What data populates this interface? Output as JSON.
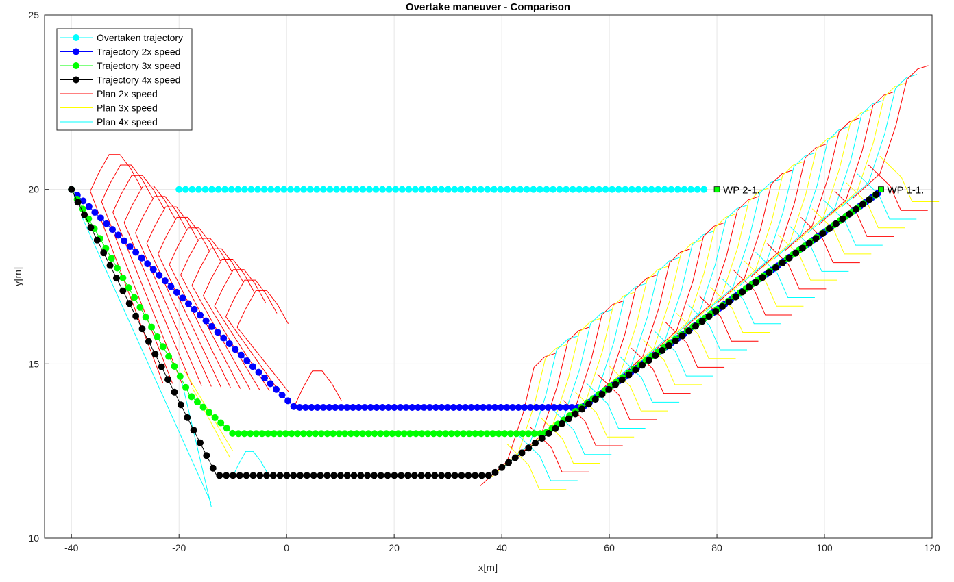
{
  "chart_data": {
    "type": "line",
    "title": "Overtake maneuver - Comparison",
    "xlabel": "x[m]",
    "ylabel": "y[m]",
    "xlim": [
      -45,
      120
    ],
    "ylim": [
      10,
      25
    ],
    "xticks": [
      -40,
      -20,
      0,
      20,
      40,
      60,
      80,
      100,
      120
    ],
    "yticks": [
      10,
      15,
      20,
      25
    ],
    "grid": true,
    "legend_position": "top-left",
    "series": [
      {
        "name": "Overtaken trajectory",
        "color": "#00FFFF",
        "style": "line-dot",
        "path": [
          [
            -20,
            20
          ],
          [
            78,
            20
          ]
        ],
        "dot_step": 1.22
      },
      {
        "name": "Trajectory 2x speed",
        "color": "#0000FF",
        "style": "line-dot",
        "path": [
          [
            -40,
            20
          ],
          [
            1.5,
            13.75
          ],
          [
            55,
            13.75
          ],
          [
            110,
            19.9
          ]
        ],
        "dot_step": 1.1
      },
      {
        "name": "Trajectory 3x speed",
        "color": "#00FF00",
        "style": "line-dot",
        "path": [
          [
            -40,
            20
          ],
          [
            -20,
            14.7
          ],
          [
            -18,
            14.1
          ],
          [
            -10,
            13.0
          ],
          [
            48,
            13.0
          ],
          [
            110,
            19.9
          ]
        ],
        "dot_step": 1.1
      },
      {
        "name": "Trajectory 4x speed",
        "color": "#000000",
        "style": "line-dot",
        "path": [
          [
            -40,
            20
          ],
          [
            -13,
            11.8
          ],
          [
            38,
            11.8
          ],
          [
            110,
            19.9
          ]
        ],
        "dot_step": 1.25
      },
      {
        "name": "Plan 2x speed",
        "color": "#FF0000",
        "style": "line"
      },
      {
        "name": "Plan 3x speed",
        "color": "#FFFF00",
        "style": "line"
      },
      {
        "name": "Plan 4x speed",
        "color": "#00FFFF",
        "style": "line"
      }
    ],
    "annotations": [
      {
        "label": "WP 2-1.",
        "x": 80,
        "y": 20
      },
      {
        "label": "WP 1-1.",
        "x": 110.5,
        "y": 20
      }
    ],
    "waypoint_color": "#00FF00"
  }
}
